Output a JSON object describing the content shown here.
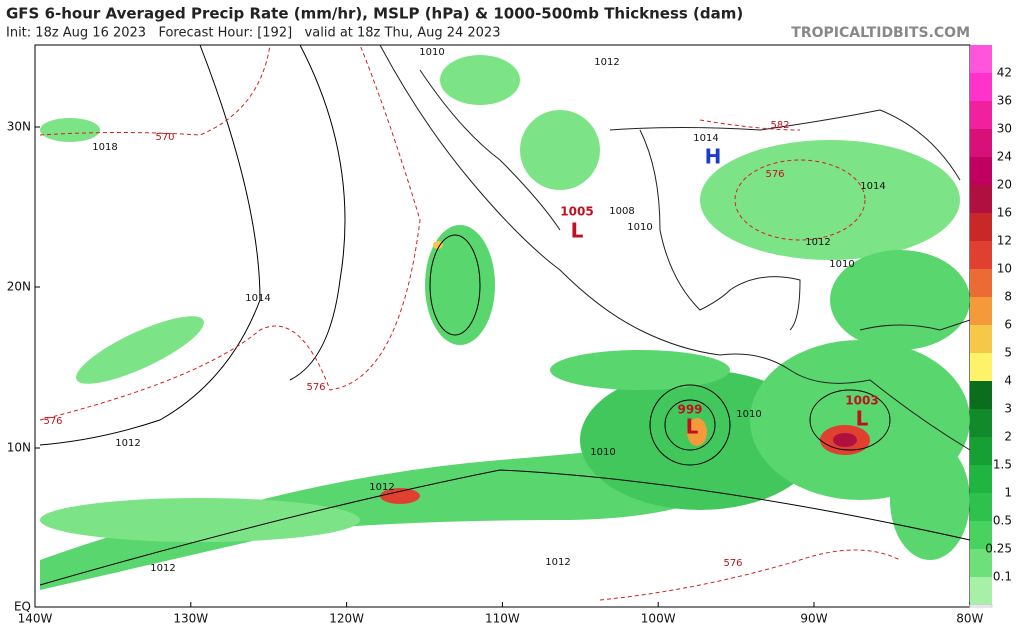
{
  "header": {
    "title": "GFS 6-hour Averaged Precip Rate (mm/hr), MSLP (hPa) & 1000-500mb Thickness (dam)",
    "subtitle": "Init: 18z Aug 16 2023   Forecast Hour: [192]   valid at 18z Thu, Aug 24 2023",
    "credit": "TROPICALTIDBITS.COM"
  },
  "map": {
    "lat_labels": [
      "30N",
      "20N",
      "10N",
      "EQ"
    ],
    "lon_labels": [
      "140W",
      "130W",
      "120W",
      "110W",
      "100W",
      "90W",
      "80W"
    ],
    "contour_labels": [
      "1010",
      "1012",
      "1018",
      "570",
      "582",
      "1014",
      "H",
      "576",
      "1014",
      "1012",
      "1010",
      "1010",
      "1008",
      "1005",
      "L",
      "1014",
      "576",
      "576",
      "1012",
      "999",
      "L",
      "1010",
      "1003",
      "L",
      "1010",
      "1012",
      "1012",
      "1012",
      "576"
    ]
  },
  "colorbar": {
    "levels": [
      {
        "label": "42",
        "color": "#ff33cc"
      },
      {
        "label": "36",
        "color": "#f0209f"
      },
      {
        "label": "30",
        "color": "#d8107a"
      },
      {
        "label": "24",
        "color": "#c00060"
      },
      {
        "label": "20",
        "color": "#b01040"
      },
      {
        "label": "16",
        "color": "#c82828"
      },
      {
        "label": "12",
        "color": "#e04030"
      },
      {
        "label": "10",
        "color": "#ec6a34"
      },
      {
        "label": "8",
        "color": "#f49a3a"
      },
      {
        "label": "6",
        "color": "#f6c848"
      },
      {
        "label": "5",
        "color": "#fff36a"
      },
      {
        "label": "4",
        "color": "#0a6e1e"
      },
      {
        "label": "3",
        "color": "#108a2a"
      },
      {
        "label": "2",
        "color": "#16a034"
      },
      {
        "label": "1.5",
        "color": "#1fb540"
      },
      {
        "label": "1",
        "color": "#2ec24c"
      },
      {
        "label": "0.5",
        "color": "#48d25e"
      },
      {
        "label": "0.25",
        "color": "#6ee07a"
      },
      {
        "label": "0.1",
        "color": "#a8f0a8"
      }
    ]
  }
}
